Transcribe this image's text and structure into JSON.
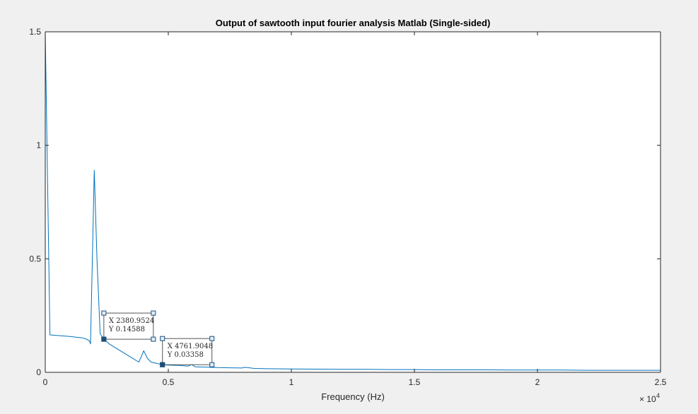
{
  "chart_data": {
    "type": "line",
    "title": "Output of sawtooth input fourier analysis Matlab (Single-sided)",
    "xlabel": "Frequency (Hz)",
    "ylabel": "",
    "x_exponent": {
      "base": "× 10",
      "power": "4"
    },
    "xlim": [
      0,
      25000
    ],
    "ylim": [
      0,
      1.5
    ],
    "x_ticks": [
      {
        "value": 0,
        "label": "0"
      },
      {
        "value": 5000,
        "label": "0.5"
      },
      {
        "value": 10000,
        "label": "1"
      },
      {
        "value": 15000,
        "label": "1.5"
      },
      {
        "value": 20000,
        "label": "2"
      },
      {
        "value": 25000,
        "label": "2.5"
      }
    ],
    "y_ticks": [
      {
        "value": 0,
        "label": "0"
      },
      {
        "value": 0.5,
        "label": "0.5"
      },
      {
        "value": 1,
        "label": "1"
      },
      {
        "value": 1.5,
        "label": "1.5"
      }
    ],
    "grid": false,
    "line_color": "#0072bd",
    "series": [
      {
        "x": [
          0,
          190,
          500,
          1000,
          1500,
          1700,
          1800,
          1840,
          1990,
          2100,
          2230,
          2380.9524,
          2600,
          2900,
          3200,
          3500,
          3800,
          3900,
          4000,
          4150,
          4300,
          4500,
          4761.9048,
          5000,
          5500,
          5800,
          5950,
          6100,
          6500,
          7000,
          7500,
          8000,
          8100,
          8500,
          9000,
          10000,
          11000,
          12000,
          13000,
          14000,
          15000,
          16000,
          17000,
          18000,
          19000,
          20000,
          21000,
          22000,
          23000,
          24000,
          25000
        ],
        "y": [
          1.5,
          0.165,
          0.162,
          0.158,
          0.152,
          0.145,
          0.138,
          0.125,
          0.89,
          0.5,
          0.17,
          0.14588,
          0.125,
          0.105,
          0.085,
          0.065,
          0.045,
          0.068,
          0.095,
          0.062,
          0.045,
          0.04,
          0.03358,
          0.032,
          0.03,
          0.027,
          0.034,
          0.024,
          0.023,
          0.021,
          0.02,
          0.019,
          0.022,
          0.017,
          0.016,
          0.015,
          0.014,
          0.013,
          0.013,
          0.012,
          0.012,
          0.011,
          0.011,
          0.011,
          0.01,
          0.01,
          0.01,
          0.009,
          0.009,
          0.009,
          0.009
        ]
      }
    ],
    "datatips": [
      {
        "x": 2380.9524,
        "y": 0.14588,
        "x_text": "X 2380.9524",
        "y_text": "Y 0.14588"
      },
      {
        "x": 4761.9048,
        "y": 0.03358,
        "x_text": "X 4761.9048",
        "y_text": "Y 0.03358"
      }
    ]
  }
}
